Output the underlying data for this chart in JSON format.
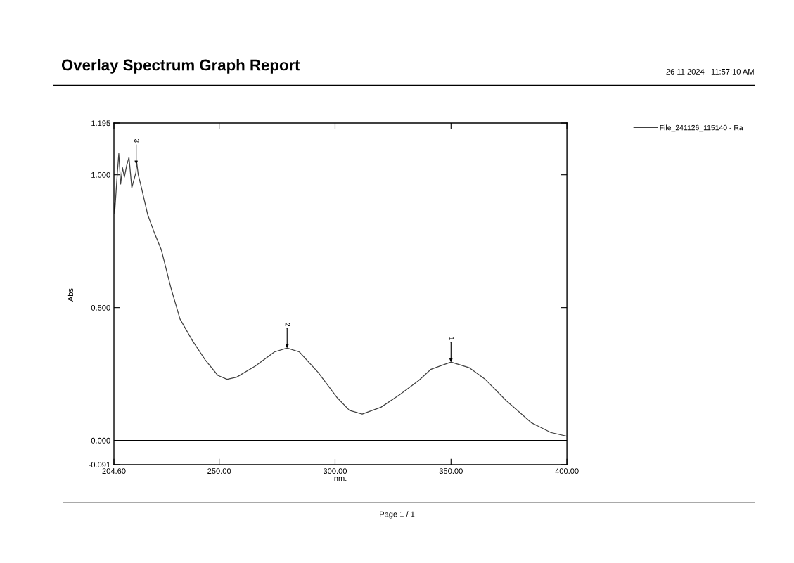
{
  "chart_data": {
    "type": "line",
    "title": "Overlay Spectrum Graph Report",
    "xlabel": "nm.",
    "ylabel": "Abs.",
    "annotations": [
      "26 11 2024   11:57:10 AM",
      "Page 1 / 1",
      {
        "text": "1",
        "x": 350.0,
        "y": 0.295
      },
      {
        "text": "2",
        "x": 279.3,
        "y": 0.348
      },
      {
        "text": "3",
        "x": 214.2,
        "y": 1.04
      }
    ],
    "series": [
      {
        "name": "File_241126_115140 - Ra",
        "color": "#404040",
        "x": [
          204.6,
          204.9,
          205.8,
          206.7,
          207.5,
          208.3,
          209.1,
          210.1,
          211.1,
          212.3,
          214.1,
          214.4,
          215.1,
          216.1,
          219.2,
          222.2,
          225.0,
          229.1,
          233.1,
          238.5,
          244.0,
          249.4,
          253.4,
          257.5,
          265.6,
          273.8,
          279.3,
          284.6,
          292.7,
          300.9,
          306.2,
          311.7,
          319.8,
          328.0,
          336.1,
          341.4,
          350.0,
          357.8,
          364.5,
          373.9,
          384.8,
          393.0,
          400.0
        ],
        "values": [
          0.893,
          0.854,
          0.973,
          1.08,
          0.965,
          1.027,
          0.991,
          1.035,
          1.066,
          0.951,
          1.009,
          1.049,
          1.0,
          0.965,
          0.849,
          0.778,
          0.719,
          0.577,
          0.457,
          0.375,
          0.303,
          0.245,
          0.23,
          0.238,
          0.28,
          0.333,
          0.348,
          0.333,
          0.256,
          0.161,
          0.113,
          0.099,
          0.125,
          0.173,
          0.226,
          0.268,
          0.295,
          0.274,
          0.232,
          0.149,
          0.066,
          0.03,
          0.016
        ]
      }
    ],
    "xlim": [
      204.6,
      400.0
    ],
    "ylim": [
      -0.091,
      1.195
    ],
    "xticks": [
      {
        "value": 204.6,
        "label": "204.60"
      },
      {
        "value": 250,
        "label": "250.00"
      },
      {
        "value": 300,
        "label": "300.00"
      },
      {
        "value": 350,
        "label": "350.00"
      },
      {
        "value": 400,
        "label": "400.00"
      }
    ],
    "yticks": [
      {
        "value": -0.091,
        "label": "-0.091"
      },
      {
        "value": 0,
        "label": "0.000"
      },
      {
        "value": 0.5,
        "label": "0.500"
      },
      {
        "value": 1.0,
        "label": "1.000"
      },
      {
        "value": 1.195,
        "label": "1.195"
      }
    ],
    "ref_lines": [
      {
        "axis": "y",
        "value": 0,
        "color": "#000000"
      }
    ],
    "grid": false,
    "legend": "top right",
    "marker": "none",
    "line_style": "solid"
  }
}
